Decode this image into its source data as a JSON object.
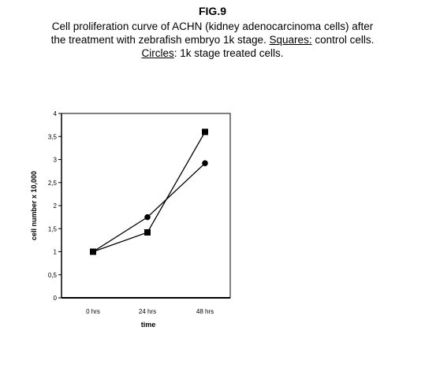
{
  "caption": {
    "figure_label": "FIG.9",
    "line1": "Cell proliferation curve of ACHN (kidney adenocarcinoma cells) after",
    "line2": "the treatment with zebrafish embryo 1k stage.",
    "squares_label": "Squares:",
    "squares_desc": "control cells.",
    "circles_label": "Circles",
    "circles_desc": ": 1k stage treated cells."
  },
  "chart_data": {
    "type": "line",
    "categories": [
      "0 hrs",
      "24 hrs",
      "48 hrs"
    ],
    "yticks": [
      "0",
      "0,5",
      "1",
      "1,5",
      "2",
      "2,5",
      "3",
      "3,5",
      "4"
    ],
    "ylim": [
      0,
      4
    ],
    "xlabel": "time",
    "ylabel": "cell number x 10,000",
    "grid": false,
    "series": [
      {
        "marker": "square",
        "color": "#000000",
        "values": [
          1.0,
          1.42,
          3.6
        ]
      },
      {
        "marker": "circle",
        "color": "#000000",
        "values": [
          1.0,
          1.75,
          2.92
        ]
      }
    ]
  }
}
